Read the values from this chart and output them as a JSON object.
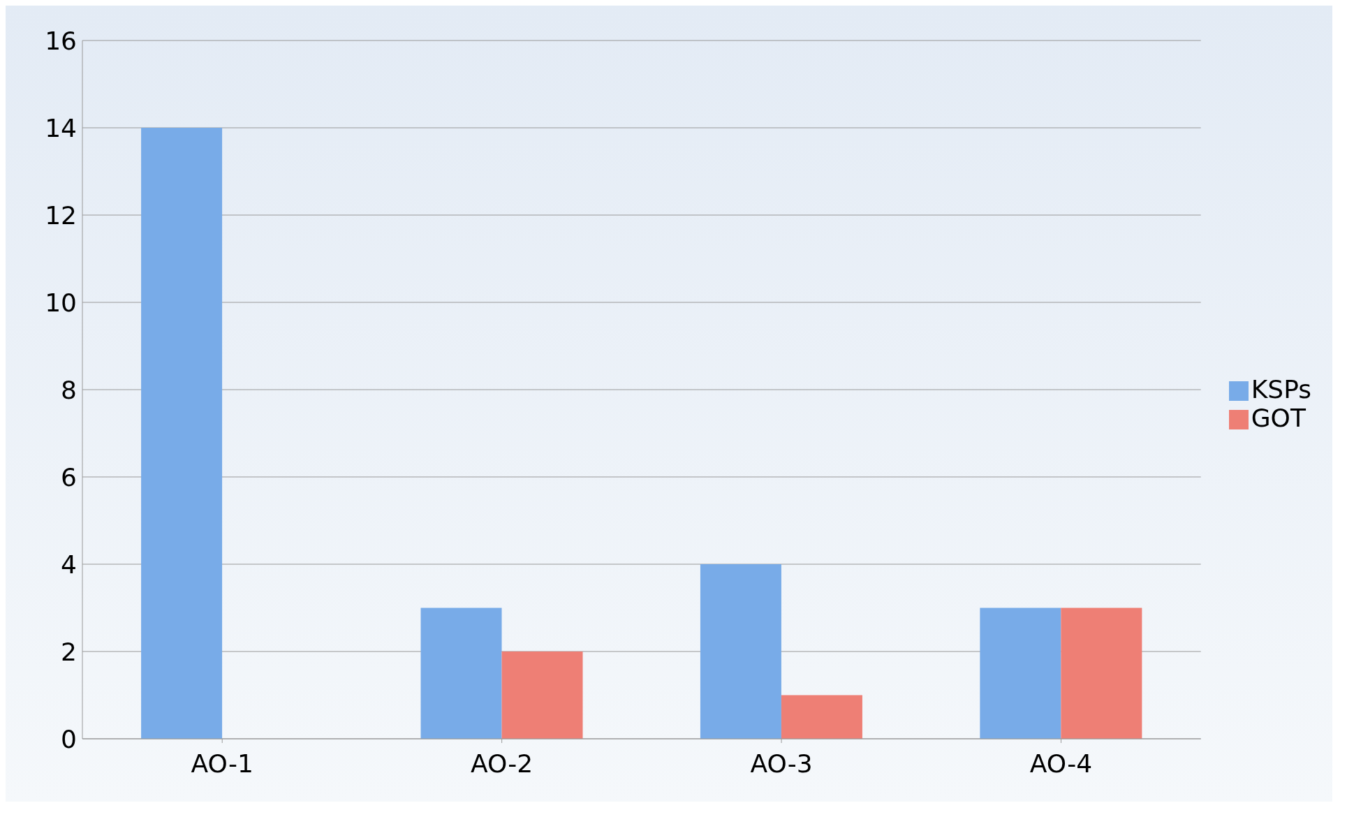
{
  "chart_data": {
    "type": "bar",
    "categories": [
      "AO-1",
      "AO-2",
      "AO-3",
      "AO-4"
    ],
    "series": [
      {
        "name": "KSPs",
        "color": "#78abe8",
        "values": [
          14,
          3,
          4,
          3
        ]
      },
      {
        "name": "GOT",
        "color": "#ee7f75",
        "values": [
          0,
          2,
          1,
          3
        ]
      }
    ],
    "ylim": [
      0,
      16
    ],
    "yticks": [
      0,
      2,
      4,
      6,
      8,
      10,
      12,
      14,
      16
    ],
    "grid": "y",
    "legend": "right"
  }
}
